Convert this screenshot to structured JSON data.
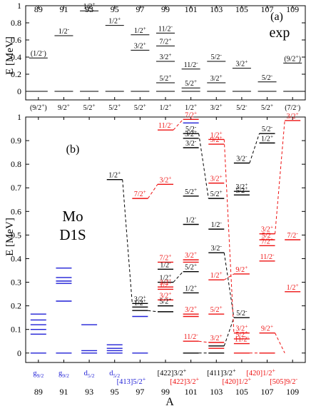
{
  "figure": {
    "x_axis_label": "A",
    "panel_a_label": "(a)",
    "panel_a_tag": "exp",
    "panel_b_label": "(b)",
    "panel_b_tag_line1": "Mo",
    "panel_b_tag_line2": "D1S",
    "y_axis_label_a": "E [MeV]",
    "y_axis_label_b": "E [MeV]"
  },
  "chart_data": [
    {
      "type": "level-scheme",
      "panel": "(a)",
      "xlabel": "A",
      "ylabel": "E [MeV]",
      "ylim": [
        0,
        1
      ],
      "yticks": [
        0,
        0.2,
        0.4,
        0.6,
        0.8,
        1
      ],
      "ytick_labels": [
        "0",
        "0.2",
        "0.4",
        "0.6",
        "0.8",
        "1"
      ],
      "xticks": [
        89,
        91,
        93,
        95,
        97,
        99,
        101,
        103,
        105,
        107,
        109
      ],
      "xtick_labels": [
        "89",
        "91",
        "93",
        "95",
        "97",
        "99",
        "101",
        "103",
        "105",
        "107",
        "109"
      ],
      "ground_states": [
        "(9/2+)",
        "9/2+",
        "5/2+",
        "5/2+",
        "5/2+",
        "1/2+",
        "1/2+",
        "3/2+",
        "5/2-",
        "5/2+",
        "(7/2-)"
      ],
      "levels": [
        {
          "A": 89,
          "E": 0.39,
          "label": "(1/2-)"
        },
        {
          "A": 91,
          "E": 0.65,
          "label": "1/2-"
        },
        {
          "A": 93,
          "E": 0.94,
          "label": "1/2+"
        },
        {
          "A": 95,
          "E": 0.77,
          "label": "1/2+"
        },
        {
          "A": 97,
          "E": 0.66,
          "label": "1/2+"
        },
        {
          "A": 97,
          "E": 0.48,
          "label": "3/2+"
        },
        {
          "A": 99,
          "E": 0.68,
          "label": "11/2-"
        },
        {
          "A": 99,
          "E": 0.53,
          "label": "7/2+"
        },
        {
          "A": 99,
          "E": 0.35,
          "label": "3/2+"
        },
        {
          "A": 99,
          "E": 0.1,
          "label": "5/2+"
        },
        {
          "A": 101,
          "E": 0.26,
          "label": "11/2-"
        },
        {
          "A": 101,
          "E": 0.04,
          "label": "5/2+"
        },
        {
          "A": 103,
          "E": 0.35,
          "label": "5/2-"
        },
        {
          "A": 103,
          "E": 0.1,
          "label": "3/2+"
        },
        {
          "A": 105,
          "E": 0.27,
          "label": "3/2+"
        },
        {
          "A": 107,
          "E": 0.11,
          "label": "5/2-"
        },
        {
          "A": 109,
          "E": 0.33,
          "label": "(9/2+)"
        }
      ]
    },
    {
      "type": "level-scheme",
      "panel": "(b)",
      "xlabel": "A",
      "ylabel": "E [MeV]",
      "ylim": [
        0,
        1
      ],
      "yticks": [
        0,
        0.1,
        0.2,
        0.3,
        0.4,
        0.5,
        0.6,
        0.7,
        0.8,
        0.9,
        1
      ],
      "ytick_labels": [
        "0",
        "0.1",
        "0.2",
        "0.3",
        "0.4",
        "0.5",
        "0.6",
        "0.7",
        "0.8",
        "0.9",
        "1"
      ],
      "xticks": [
        89,
        91,
        93,
        95,
        97,
        99,
        101,
        103,
        105,
        107,
        109
      ],
      "xtick_labels": [
        "89",
        "91",
        "93",
        "95",
        "97",
        "99",
        "101",
        "103",
        "105",
        "107",
        "109"
      ],
      "colors": {
        "blue": "#1f1fd6",
        "black": "#000000",
        "red": "#ee1111"
      },
      "blue_bands": [
        {
          "A": 89,
          "label": "g9/2",
          "levels": [
            0,
            0.08,
            0.1,
            0.12,
            0.14,
            0.165
          ]
        },
        {
          "A": 91,
          "label": "g9/2",
          "levels": [
            0,
            0.22,
            0.295,
            0.305,
            0.32,
            0.36
          ]
        },
        {
          "A": 93,
          "label": "d5/2",
          "levels": [
            0,
            0.01,
            0.12
          ]
        },
        {
          "A": 95,
          "label": "d5/2",
          "levels": [
            0,
            0.01,
            0.02,
            0.035
          ]
        },
        {
          "A": 97,
          "label": "",
          "levels": [
            0,
            0.155
          ]
        }
      ],
      "levels": [
        {
          "A": 95,
          "E": 0.735,
          "color": "black",
          "label": "1/2+",
          "dash": true
        },
        {
          "A": 97,
          "E": 0.21,
          "color": "black",
          "label": "3/2+"
        },
        {
          "A": 97,
          "E": 0.195,
          "color": "black",
          "label": "1/2+"
        },
        {
          "A": 97,
          "E": 0.18,
          "color": "black",
          "label": ""
        },
        {
          "A": 97,
          "E": 0.655,
          "color": "red",
          "label": "7/2+"
        },
        {
          "A": 99,
          "E": 0.945,
          "color": "red",
          "label": "11/2-"
        },
        {
          "A": 99,
          "E": 0.715,
          "color": "red",
          "label": "3/2+"
        },
        {
          "A": 99,
          "E": 0.385,
          "color": "red",
          "label": "7/2+"
        },
        {
          "A": 99,
          "E": 0.355,
          "color": "black",
          "label": "1/2-"
        },
        {
          "A": 99,
          "E": 0.3,
          "color": "black",
          "label": "1/2+"
        },
        {
          "A": 99,
          "E": 0.28,
          "color": "red",
          "label": "3/2+"
        },
        {
          "A": 99,
          "E": 0.27,
          "color": "red",
          "label": "1/2+"
        },
        {
          "A": 99,
          "E": 0.225,
          "color": "red",
          "label": "3/2+"
        },
        {
          "A": 99,
          "E": 0.2,
          "color": "black",
          "label": "5/2+"
        },
        {
          "A": 99,
          "E": 0.175,
          "color": "black",
          "label": ""
        },
        {
          "A": 101,
          "E": 0.99,
          "color": "red",
          "label": "7/2+"
        },
        {
          "A": 101,
          "E": 0.975,
          "color": "blue",
          "label": ""
        },
        {
          "A": 101,
          "E": 0.93,
          "color": "black",
          "label": "5/2-"
        },
        {
          "A": 101,
          "E": 0.91,
          "color": "black",
          "label": "3/2+"
        },
        {
          "A": 101,
          "E": 0.87,
          "color": "black",
          "label": "3/2-"
        },
        {
          "A": 101,
          "E": 0.665,
          "color": "black",
          "label": "5/2+"
        },
        {
          "A": 101,
          "E": 0.545,
          "color": "black",
          "label": "1/2-"
        },
        {
          "A": 101,
          "E": 0.395,
          "color": "red",
          "label": "3/2+"
        },
        {
          "A": 101,
          "E": 0.385,
          "color": "red",
          "label": ""
        },
        {
          "A": 101,
          "E": 0.345,
          "color": "black",
          "label": "5/2+"
        },
        {
          "A": 101,
          "E": 0.255,
          "color": "black",
          "label": "1/2+"
        },
        {
          "A": 101,
          "E": 0.165,
          "color": "red",
          "label": "3/2+"
        },
        {
          "A": 101,
          "E": 0.155,
          "color": "red",
          "label": ""
        },
        {
          "A": 101,
          "E": 0.05,
          "color": "red",
          "label": "11/2-"
        },
        {
          "A": 101,
          "E": 0.0,
          "color": "black",
          "label": ""
        },
        {
          "A": 103,
          "E": 0.905,
          "color": "red",
          "label": "1/2+"
        },
        {
          "A": 103,
          "E": 0.885,
          "color": "red",
          "label": "9/2+"
        },
        {
          "A": 103,
          "E": 0.72,
          "color": "red",
          "label": "3/2+"
        },
        {
          "A": 103,
          "E": 0.655,
          "color": "black",
          "label": "5/2+"
        },
        {
          "A": 103,
          "E": 0.525,
          "color": "black",
          "label": "1/2-"
        },
        {
          "A": 103,
          "E": 0.425,
          "color": "black",
          "label": "3/2-"
        },
        {
          "A": 103,
          "E": 0.31,
          "color": "red",
          "label": "1/2+"
        },
        {
          "A": 103,
          "E": 0.165,
          "color": "red",
          "label": "5/2+"
        },
        {
          "A": 103,
          "E": 0.045,
          "color": "red",
          "label": "3/2+"
        },
        {
          "A": 103,
          "E": 0.03,
          "color": "black",
          "label": ""
        },
        {
          "A": 103,
          "E": 0.02,
          "color": "red",
          "label": ""
        },
        {
          "A": 103,
          "E": 0.0,
          "color": "black",
          "label": ""
        },
        {
          "A": 105,
          "E": 0.805,
          "color": "black",
          "label": "3/2-"
        },
        {
          "A": 105,
          "E": 0.685,
          "color": "black",
          "label": "3/2+"
        },
        {
          "A": 105,
          "E": 0.67,
          "color": "black",
          "label": "5/2+"
        },
        {
          "A": 105,
          "E": 0.335,
          "color": "red",
          "label": "9/2+"
        },
        {
          "A": 105,
          "E": 0.15,
          "color": "black",
          "label": "5/2-"
        },
        {
          "A": 105,
          "E": 0.085,
          "color": "red",
          "label": "3/2+"
        },
        {
          "A": 105,
          "E": 0.06,
          "color": "red",
          "label": "5/2+"
        },
        {
          "A": 105,
          "E": 0.04,
          "color": "red",
          "label": "11/2-"
        },
        {
          "A": 105,
          "E": 0.0,
          "color": "red",
          "label": ""
        },
        {
          "A": 107,
          "E": 0.93,
          "color": "black",
          "label": "5/2-"
        },
        {
          "A": 107,
          "E": 0.89,
          "color": "black",
          "label": "1/2+"
        },
        {
          "A": 107,
          "E": 0.505,
          "color": "red",
          "label": "3/2+"
        },
        {
          "A": 107,
          "E": 0.48,
          "color": "red",
          "label": "5/2-"
        },
        {
          "A": 107,
          "E": 0.455,
          "color": "red",
          "label": "7/2+"
        },
        {
          "A": 107,
          "E": 0.39,
          "color": "red",
          "label": "11/2-"
        },
        {
          "A": 107,
          "E": 0.085,
          "color": "red",
          "label": "9/2+"
        },
        {
          "A": 107,
          "E": 0.0,
          "color": "red",
          "label": ""
        },
        {
          "A": 109,
          "E": 0.985,
          "color": "red",
          "label": "3/2+"
        },
        {
          "A": 109,
          "E": 0.48,
          "color": "red",
          "label": "7/2-"
        },
        {
          "A": 109,
          "E": 0.26,
          "color": "red",
          "label": "1/2+"
        }
      ],
      "bottom_labels": [
        {
          "A": 89,
          "text": "g9/2",
          "color": "blue"
        },
        {
          "A": 91,
          "text": "g9/2",
          "color": "blue"
        },
        {
          "A": 93,
          "text": "d5/2",
          "color": "blue"
        },
        {
          "A": 95,
          "text": "d5/2",
          "color": "blue"
        },
        {
          "A": 96.3,
          "text": "[413]5/2+",
          "color": "blue"
        },
        {
          "A": 99.5,
          "text": "[422]3/2+",
          "color": "black"
        },
        {
          "A": 100.5,
          "text": "[422]3/2+",
          "color": "red"
        },
        {
          "A": 103.4,
          "text": "[411]3/2+",
          "color": "black"
        },
        {
          "A": 104.6,
          "text": "[420]1/2+",
          "color": "red"
        },
        {
          "A": 106.5,
          "text": "[420]1/2+",
          "color": "red"
        },
        {
          "A": 108.3,
          "text": "[505]9/2-",
          "color": "red"
        }
      ]
    }
  ]
}
